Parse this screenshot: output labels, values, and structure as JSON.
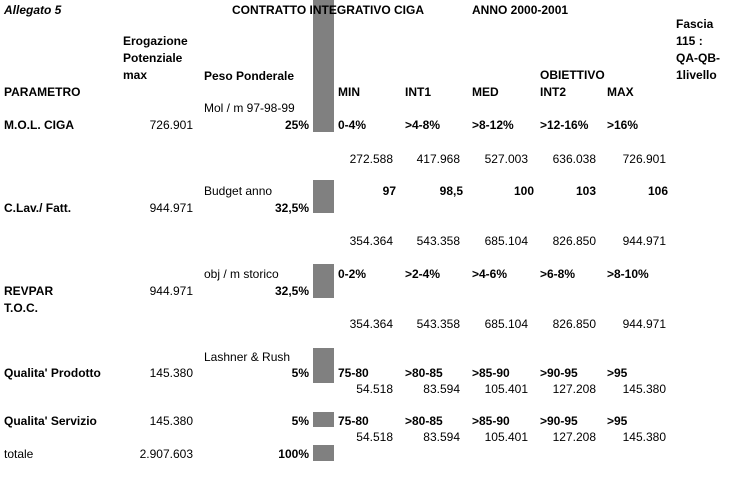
{
  "header": {
    "allegato": "Allegato 5",
    "title": "CONTRATTO INTEGRATIVO CIGA",
    "anno": "ANNO 2000-2001",
    "fascia": [
      "Fascia",
      "115 :",
      "QA-QB-",
      "1livello"
    ]
  },
  "columns": {
    "parametro": "PARAMETRO",
    "erogazione": [
      "Erogazione",
      "Potenziale",
      "max"
    ],
    "peso": "Peso Ponderale",
    "obiettivo": "OBIETTIVO",
    "levels": [
      "MIN",
      "INT1",
      "MED",
      "INT2",
      "MAX"
    ]
  },
  "rows": [
    {
      "name": "M.O.L. CIGA",
      "erogazione": "726.901",
      "note": "Mol / m 97-98-99",
      "peso": "25%",
      "ranges": [
        "0-4%",
        ">4-8%",
        ">8-12%",
        ">12-16%",
        ">16%"
      ],
      "values": [
        "272.588",
        "417.968",
        "527.003",
        "636.038",
        "726.901"
      ]
    },
    {
      "name": "C.Lav./ Fatt.",
      "erogazione": "944.971",
      "note": "Budget anno",
      "peso": "32,5%",
      "ranges": [
        "97",
        "98,5",
        "100",
        "103",
        "106"
      ],
      "values": [
        "354.364",
        "543.358",
        "685.104",
        "826.850",
        "944.971"
      ]
    },
    {
      "name": "REVPAR",
      "name2": "T.O.C.",
      "erogazione": "944.971",
      "note": "obj / m storico",
      "peso": "32,5%",
      "ranges": [
        "0-2%",
        ">2-4%",
        ">4-6%",
        ">6-8%",
        ">8-10%"
      ],
      "values": [
        "354.364",
        "543.358",
        "685.104",
        "826.850",
        "944.971"
      ]
    },
    {
      "name": "Qualita' Prodotto",
      "erogazione": "145.380",
      "note": "Lashner & Rush",
      "peso": "5%",
      "ranges": [
        "75-80",
        ">80-85",
        ">85-90",
        ">90-95",
        ">95"
      ],
      "values": [
        "54.518",
        "83.594",
        "105.401",
        "127.208",
        "145.380"
      ]
    },
    {
      "name": "Qualita' Servizio",
      "erogazione": "145.380",
      "peso": "5%",
      "ranges": [
        "75-80",
        ">80-85",
        ">85-90",
        ">90-95",
        ">95"
      ],
      "values": [
        "54.518",
        "83.594",
        "105.401",
        "127.208",
        "145.380"
      ]
    }
  ],
  "totale": {
    "label": "totale",
    "erogazione": "2.907.603",
    "peso": "100%"
  }
}
